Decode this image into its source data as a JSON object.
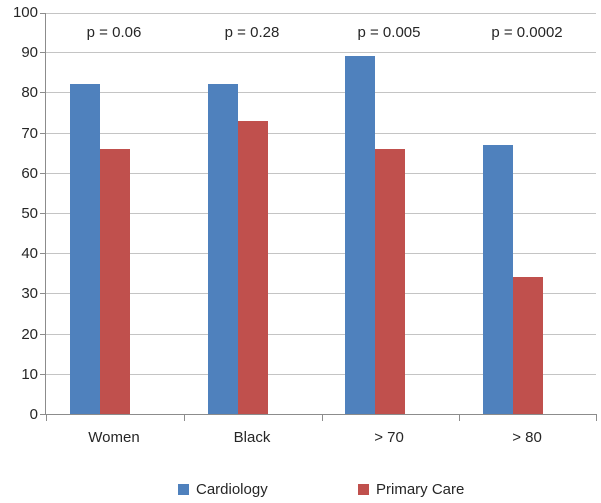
{
  "chart_data": {
    "type": "bar",
    "title": "",
    "xlabel": "",
    "ylabel": "",
    "categories": [
      "Women",
      "Black",
      "> 70",
      "> 80"
    ],
    "series": [
      {
        "name": "Cardiology",
        "color": "#4F81BD",
        "values": [
          82,
          82,
          89,
          67
        ]
      },
      {
        "name": "Primary Care",
        "color": "#C0504D",
        "values": [
          66,
          73,
          66,
          34
        ]
      }
    ],
    "annotations": [
      {
        "category": "Women",
        "text": "p = 0.06"
      },
      {
        "category": "Black",
        "text": "p = 0.28"
      },
      {
        "category": "> 70",
        "text": "p = 0.005"
      },
      {
        "category": "> 80",
        "text": "p = 0.0002"
      }
    ],
    "ylim": [
      0,
      100
    ],
    "yticks": [
      100,
      90,
      80,
      70,
      60,
      50,
      40,
      30,
      20,
      10,
      0
    ],
    "grid": true,
    "legend_position": "bottom",
    "gridline_color": "#C4C4C4",
    "axis_color": "#8C8C8C",
    "text_color": "#262626",
    "background": "#FFFFFF"
  }
}
